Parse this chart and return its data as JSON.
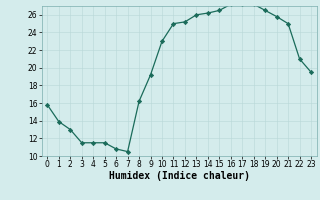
{
  "x": [
    0,
    1,
    2,
    3,
    4,
    5,
    6,
    7,
    8,
    9,
    10,
    11,
    12,
    13,
    14,
    15,
    16,
    17,
    18,
    19,
    20,
    21,
    22,
    23
  ],
  "y": [
    15.8,
    13.9,
    13.0,
    11.5,
    11.5,
    11.5,
    10.8,
    10.5,
    16.2,
    19.2,
    23.0,
    25.0,
    25.2,
    26.0,
    26.2,
    26.5,
    27.2,
    27.2,
    27.2,
    26.5,
    25.8,
    25.0,
    21.0,
    19.5
  ],
  "line_color": "#1a6b5a",
  "marker": "D",
  "marker_size": 2.2,
  "bg_color": "#d4ecec",
  "grid_color_major": "#b8d8d8",
  "grid_color_minor": "#c8e4e4",
  "xlabel": "Humidex (Indice chaleur)",
  "ylim": [
    10,
    27
  ],
  "yticks": [
    10,
    12,
    14,
    16,
    18,
    20,
    22,
    24,
    26
  ],
  "xlim": [
    -0.5,
    23.5
  ],
  "xticks": [
    0,
    1,
    2,
    3,
    4,
    5,
    6,
    7,
    8,
    9,
    10,
    11,
    12,
    13,
    14,
    15,
    16,
    17,
    18,
    19,
    20,
    21,
    22,
    23
  ],
  "tick_fontsize": 5.5,
  "xlabel_fontsize": 7.0,
  "linewidth": 0.9
}
